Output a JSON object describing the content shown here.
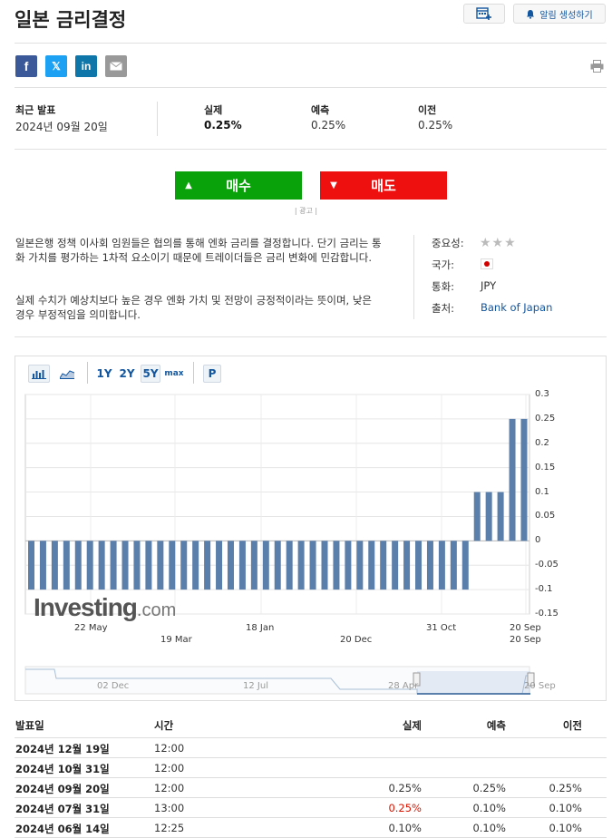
{
  "title": "일본 금리결정",
  "alert_button": "알림 생성하기",
  "summary": {
    "latest_label": "최근 발표",
    "latest_date": "2024년 09월 20일",
    "actual_label": "실제",
    "actual_value": "0.25%",
    "forecast_label": "예측",
    "forecast_value": "0.25%",
    "previous_label": "이전",
    "previous_value": "0.25%"
  },
  "trade": {
    "buy_label": "매수",
    "sell_label": "매도",
    "ad_label": "| 광고 |"
  },
  "description": {
    "p1": "일본은행 정책 이사회 임원들은 협의를 통해 엔화 금리를 결정합니다. 단기 금리는 통화 가치를 평가하는 1차적 요소이기 때문에 트레이더들은 금리 변화에 민감합니다.",
    "p2": "실제 수치가 예상치보다 높은 경우 엔화 가치 및 전망이 긍정적이라는 뜻이며, 낮은 경우 부정적임을 의미합니다."
  },
  "meta": {
    "importance_label": "중요성:",
    "country_label": "국가:",
    "currency_label": "통화:",
    "currency_value": "JPY",
    "source_label": "출처:",
    "source_value": "Bank of Japan"
  },
  "toolbar": {
    "r1y": "1Y",
    "r2y": "2Y",
    "r5y": "5Y",
    "rmax": "max",
    "p": "P"
  },
  "chart_data": {
    "type": "bar",
    "series": [
      {
        "values": [
          -0.1,
          -0.1,
          -0.1,
          -0.1,
          -0.1,
          -0.1,
          -0.1,
          -0.1,
          -0.1,
          -0.1,
          -0.1,
          -0.1,
          -0.1,
          -0.1,
          -0.1,
          -0.1,
          -0.1,
          -0.1,
          -0.1,
          -0.1,
          -0.1,
          -0.1,
          -0.1,
          -0.1,
          -0.1,
          -0.1,
          -0.1,
          -0.1,
          -0.1,
          -0.1,
          -0.1,
          -0.1,
          -0.1,
          -0.1,
          -0.1,
          -0.1,
          -0.1,
          -0.1,
          0.1,
          0.1,
          0.1,
          0.25,
          0.25
        ],
        "color": "#5b7fab"
      }
    ],
    "ylim": [
      -0.15,
      0.3
    ],
    "y_ticks": [
      "0.3",
      "0.25",
      "0.2",
      "0.15",
      "0.1",
      "0.05",
      "0",
      "-0.05",
      "-0.1",
      "-0.15"
    ],
    "x_labels_row1": [
      "22 May",
      "18 Jan",
      "31 Oct",
      "20 Sep"
    ],
    "x_labels_row2": [
      "19 Mar",
      "20 Dec",
      "20 Sep"
    ],
    "navigator_labels": [
      "02 Dec",
      "12 Jul",
      "28 Apr",
      "20 Sep"
    ],
    "grid": true,
    "watermark": {
      "main": "Investing",
      "suffix": ".com"
    }
  },
  "table": {
    "headers": {
      "date": "발표일",
      "time": "시간",
      "actual": "실제",
      "forecast": "예측",
      "previous": "이전"
    },
    "rows": [
      {
        "date": "2024년 12월 19일",
        "time": "12:00",
        "actual": "",
        "forecast": "",
        "previous": ""
      },
      {
        "date": "2024년 10월 31일",
        "time": "12:00",
        "actual": "",
        "forecast": "",
        "previous": ""
      },
      {
        "date": "2024년 09월 20일",
        "time": "12:00",
        "actual": "0.25%",
        "forecast": "0.25%",
        "previous": "0.25%"
      },
      {
        "date": "2024년 07월 31일",
        "time": "13:00",
        "actual": "0.25%",
        "forecast": "0.10%",
        "previous": "0.10%",
        "actual_color": "#d91400"
      },
      {
        "date": "2024년 06월 14일",
        "time": "12:25",
        "actual": "0.10%",
        "forecast": "0.10%",
        "previous": "0.10%"
      }
    ]
  }
}
